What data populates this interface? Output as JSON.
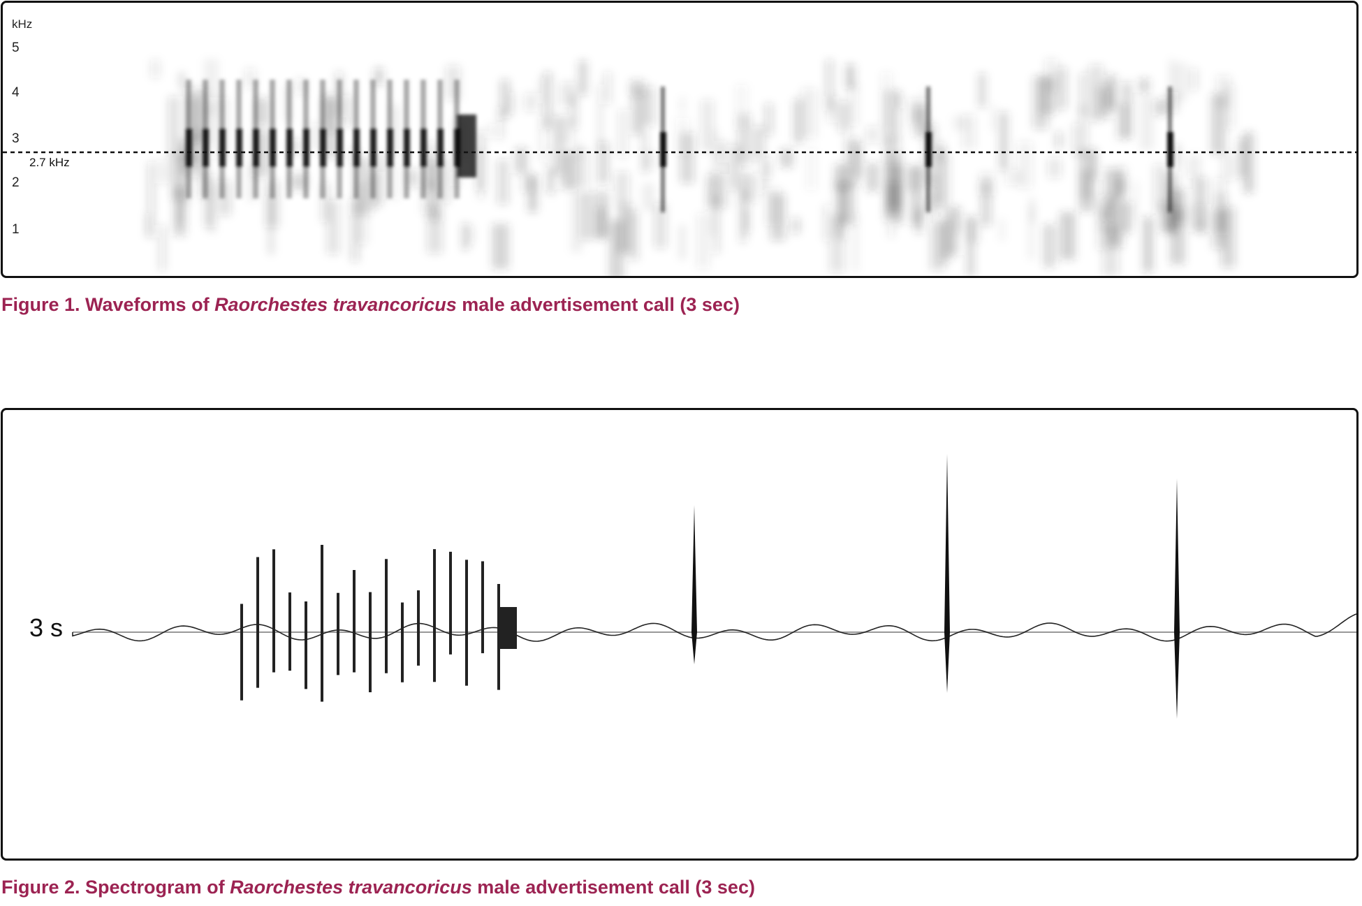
{
  "figure1": {
    "caption_prefix": "Figure 1. Waveforms of ",
    "caption_species": "Raorchestes travancoricus",
    "caption_suffix": " male advertisement call (3 sec)",
    "y_unit": "kHz",
    "y_ticks": [
      "5",
      "4",
      "3",
      "2",
      "1"
    ],
    "reference_line_label": "2.7 kHz"
  },
  "figure2": {
    "caption_prefix": "Figure 2. Spectrogram of ",
    "caption_species": "Raorchestes travancoricus",
    "caption_suffix": " male advertisement call (3 sec)",
    "duration_label": "3 s"
  },
  "chart_data": [
    {
      "type": "heatmap",
      "ylabel": "kHz",
      "yticks": [
        1,
        2,
        3,
        4,
        5
      ],
      "reference_line": 2.7,
      "reference_label": "2.7 kHz"
    },
    {
      "type": "line",
      "xlabel": "",
      "duration_label": "3 s"
    }
  ]
}
